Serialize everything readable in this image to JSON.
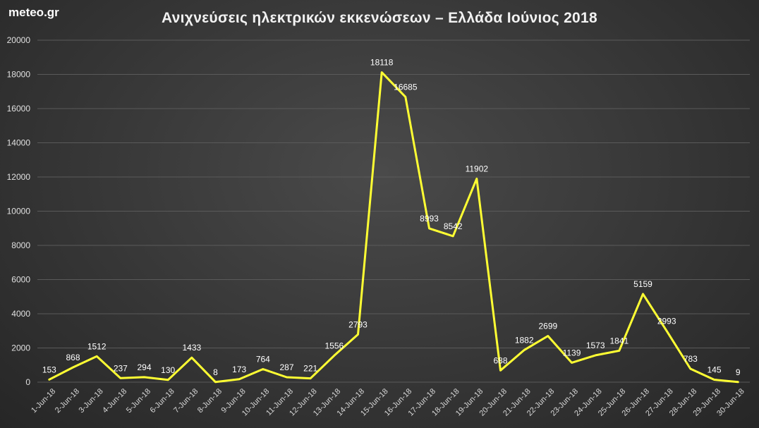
{
  "brand": "meteo.gr",
  "colors": {
    "line": "#ffff33",
    "grid": "#5a5a5a"
  },
  "chart_data": {
    "type": "line",
    "title": "Ανιχνεύσεις ηλεκτρικών εκκενώσεων – Ελλάδα Ιούνιος 2018",
    "xlabel": "",
    "ylabel": "",
    "ylim": [
      0,
      20000
    ],
    "yticks": [
      0,
      2000,
      4000,
      6000,
      8000,
      10000,
      12000,
      14000,
      16000,
      18000,
      20000
    ],
    "grid": true,
    "legend": "none",
    "categories": [
      "1-Jun-18",
      "2-Jun-18",
      "3-Jun-18",
      "4-Jun-18",
      "5-Jun-18",
      "6-Jun-18",
      "7-Jun-18",
      "8-Jun-18",
      "9-Jun-18",
      "10-Jun-18",
      "11-Jun-18",
      "12-Jun-18",
      "13-Jun-18",
      "14-Jun-18",
      "15-Jun-18",
      "16-Jun-18",
      "17-Jun-18",
      "18-Jun-18",
      "19-Jun-18",
      "20-Jun-18",
      "21-Jun-18",
      "22-Jun-18",
      "23-Jun-18",
      "24-Jun-18",
      "25-Jun-18",
      "26-Jun-18",
      "27-Jun-18",
      "28-Jun-18",
      "29-Jun-18",
      "30-Jun-18"
    ],
    "series": [
      {
        "values": [
          153,
          868,
          1512,
          237,
          294,
          130,
          1433,
          8,
          173,
          764,
          287,
          221,
          1556,
          2793,
          18118,
          16685,
          8993,
          8542,
          11902,
          688,
          1882,
          2699,
          1139,
          1573,
          1841,
          5159,
          2993,
          783,
          145,
          9
        ]
      }
    ]
  }
}
